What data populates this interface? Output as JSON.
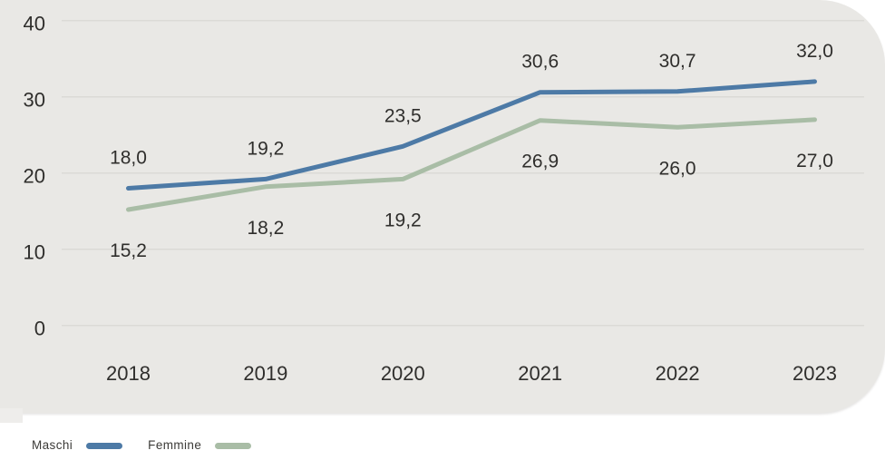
{
  "colors": {
    "page_background": "#ffffff",
    "panel_background": "#e9e8e5",
    "panel_edge_tab": "#eeedeb",
    "gridline": "#dbdad6",
    "label_text": "#2f2e2c",
    "legend_text": "#3b3a37",
    "maschi_blue": "#4d7aa6",
    "femmine_green": "#a9bda6"
  },
  "chart_data": {
    "type": "line",
    "title": "",
    "xlabel": "",
    "ylabel": "",
    "categories": [
      "2018",
      "2019",
      "2020",
      "2021",
      "2022",
      "2023"
    ],
    "series": [
      {
        "name": "Maschi",
        "color": "#4d7aa6",
        "values": [
          18.0,
          19.2,
          23.5,
          30.6,
          30.7,
          32.0
        ],
        "data_label_position": "above"
      },
      {
        "name": "Femmine",
        "color": "#a9bda6",
        "values": [
          15.2,
          18.2,
          19.2,
          26.9,
          26.0,
          27.0
        ],
        "data_label_position": "below"
      }
    ],
    "ylim": [
      0,
      40
    ],
    "yticks": [
      0,
      10,
      20,
      30,
      40
    ],
    "grid": "horizontal",
    "data_labels": true,
    "decimal_separator": ",",
    "legend_position": "bottom-left"
  }
}
